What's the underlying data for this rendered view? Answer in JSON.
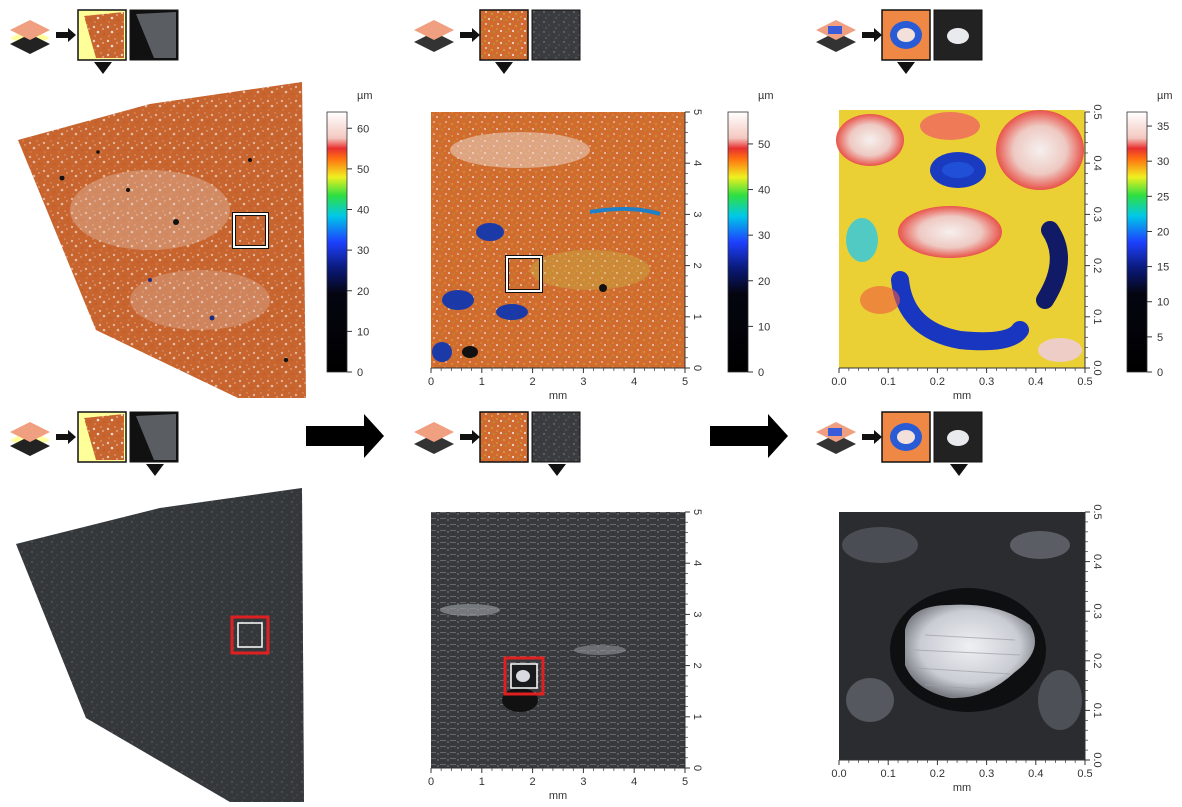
{
  "colorbars": [
    {
      "unit": "µm",
      "ticks": [
        "0",
        "10",
        "20",
        "30",
        "40",
        "50",
        "60"
      ],
      "max": 64
    },
    {
      "unit": "µm",
      "ticks": [
        "0",
        "10",
        "20",
        "30",
        "40",
        "50"
      ],
      "max": 57
    },
    {
      "unit": "µm",
      "ticks": [
        "0",
        "5",
        "10",
        "15",
        "20",
        "25",
        "30",
        "35"
      ],
      "max": 37
    }
  ],
  "axes": {
    "panel2": {
      "xunit": "mm",
      "xticks": [
        "0",
        "1",
        "2",
        "3",
        "4",
        "5"
      ],
      "yticks": [
        "0",
        "1",
        "2",
        "3",
        "4",
        "5"
      ]
    },
    "panel3": {
      "xunit": "mm",
      "xticks": [
        "0.0",
        "0.1",
        "0.2",
        "0.3",
        "0.4",
        "0.5"
      ],
      "yticks": [
        "0.0",
        "0.1",
        "0.2",
        "0.3",
        "0.4",
        "0.5"
      ]
    },
    "panel5": {
      "xunit": "mm",
      "xticks": [
        "0",
        "1",
        "2",
        "3",
        "4",
        "5"
      ],
      "yticks": [
        "0",
        "1",
        "2",
        "3",
        "4",
        "5"
      ]
    },
    "panel6": {
      "xunit": "mm",
      "xticks": [
        "0.0",
        "0.1",
        "0.2",
        "0.3",
        "0.4",
        "0.5"
      ],
      "yticks": [
        "0.0",
        "0.1",
        "0.2",
        "0.3",
        "0.4",
        "0.5"
      ]
    }
  },
  "colors": {
    "height_orange": "#c8602a",
    "selection_box_top": "#ffffff",
    "selection_box_bottom": "#e02020",
    "thumb_highlight": "#ffff99"
  }
}
